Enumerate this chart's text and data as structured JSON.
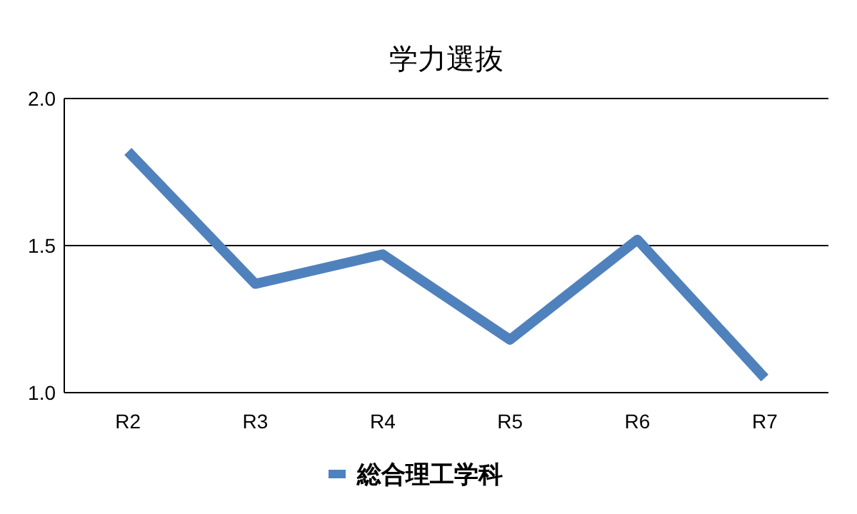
{
  "chart_data": {
    "type": "line",
    "title": "学力選抜",
    "categories": [
      "R2",
      "R3",
      "R4",
      "R5",
      "R6",
      "R7"
    ],
    "series": [
      {
        "name": "総合理工学科",
        "color": "#4f81bd",
        "values": [
          1.82,
          1.37,
          1.47,
          1.18,
          1.52,
          1.05
        ]
      }
    ],
    "ylim": [
      1.0,
      2.0
    ],
    "yticks": [
      {
        "value": 1.0,
        "label": "1.0"
      },
      {
        "value": 1.5,
        "label": "1.5"
      },
      {
        "value": 2.0,
        "label": "2.0"
      }
    ],
    "grid": "y",
    "legend": "bottom",
    "marker": "none",
    "line_style": "solid"
  }
}
